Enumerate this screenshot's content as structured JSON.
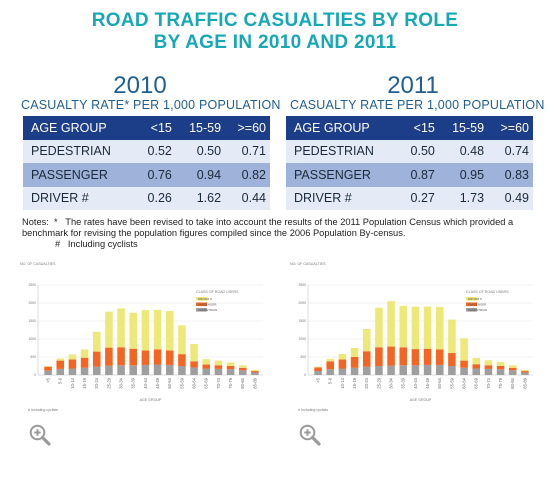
{
  "title_line1": "ROAD TRAFFIC CASUALTIES BY ROLE",
  "title_line2": "BY AGE IN 2010 AND 2011",
  "tables": [
    {
      "year": "2010",
      "subtitle": "CASUALTY RATE* PER 1,000 POPULATION",
      "headers": [
        "AGE GROUP",
        "<15",
        "15-59",
        ">=60"
      ],
      "rows": [
        [
          "PEDESTRIAN",
          "0.52",
          "0.50",
          "0.71"
        ],
        [
          "PASSENGER",
          "0.76",
          "0.94",
          "0.82"
        ],
        [
          "DRIVER #",
          "0.26",
          "1.62",
          "0.44"
        ]
      ]
    },
    {
      "year": "2011",
      "subtitle": "CASUALTY RATE PER 1,000 POPULATION",
      "headers": [
        "AGE GROUP",
        "<15",
        "15-59",
        ">=60"
      ],
      "rows": [
        [
          "PEDESTRIAN",
          "0.50",
          "0.48",
          "0.74"
        ],
        [
          "PASSENGER",
          "0.87",
          "0.95",
          "0.83"
        ],
        [
          "DRIVER #",
          "0.27",
          "1.73",
          "0.49"
        ]
      ]
    }
  ],
  "notes": {
    "label": "Notes:",
    "star": "*",
    "star_text": "The rates have been revised to take into account the results of the 2011 Population Census which provided a benchmark for revising the population figures compiled since the 2006 Population By-census.",
    "hash": "#",
    "hash_text": "Including cyclists"
  },
  "chart_data": [
    {
      "type": "bar",
      "stacked": true,
      "ylabel": "NO. OF CASUALTIES",
      "xlabel": "AGE GROUP",
      "legend_title": "CLASS OF ROAD USERS",
      "footnote": "# Including cyclists",
      "ylim": [
        0,
        2500
      ],
      "yticks": [
        0,
        500,
        1000,
        1500,
        2000,
        2500
      ],
      "categories": [
        "<5",
        "5-9",
        "10-14",
        "15-19",
        "20-24",
        "25-29",
        "30-34",
        "35-39",
        "40-44",
        "45-49",
        "50-54",
        "55-59",
        "60-64",
        "65-69",
        "70-74",
        "75-79",
        "80-84",
        "85-89"
      ],
      "series": [
        {
          "name": "PEDESTRIAN",
          "color": "#9e9e9e",
          "values": [
            120,
            170,
            180,
            200,
            230,
            260,
            270,
            270,
            280,
            290,
            280,
            250,
            210,
            180,
            170,
            160,
            130,
            70
          ]
        },
        {
          "name": "PASSENGER",
          "color": "#f26522",
          "values": [
            110,
            230,
            250,
            280,
            420,
            500,
            500,
            460,
            400,
            420,
            400,
            330,
            170,
            110,
            100,
            90,
            70,
            40
          ]
        },
        {
          "name": "DRIVER #",
          "color": "#ede878",
          "values": [
            20,
            60,
            140,
            230,
            550,
            1000,
            1080,
            1000,
            1120,
            1100,
            1100,
            800,
            480,
            150,
            130,
            100,
            70,
            30
          ]
        }
      ]
    },
    {
      "type": "bar",
      "stacked": true,
      "ylabel": "NO. OF CASUALTIES",
      "xlabel": "AGE GROUP",
      "legend_title": "CLASS OF ROAD USERS",
      "footnote": "# Including cyclists",
      "ylim": [
        0,
        2500
      ],
      "yticks": [
        0,
        500,
        1000,
        1500,
        2000,
        2500
      ],
      "categories": [
        "<5",
        "5-9",
        "10-14",
        "15-19",
        "20-24",
        "25-29",
        "30-34",
        "35-39",
        "40-44",
        "45-49",
        "50-54",
        "55-59",
        "60-64",
        "65-69",
        "70-74",
        "75-79",
        "80-84",
        "85-89"
      ],
      "series": [
        {
          "name": "PEDESTRIAN",
          "color": "#9e9e9e",
          "values": [
            110,
            160,
            180,
            200,
            230,
            250,
            260,
            270,
            270,
            280,
            280,
            250,
            200,
            180,
            170,
            160,
            130,
            70
          ]
        },
        {
          "name": "PASSENGER",
          "color": "#f26522",
          "values": [
            100,
            220,
            250,
            300,
            430,
            520,
            530,
            500,
            450,
            450,
            430,
            360,
            200,
            120,
            100,
            90,
            70,
            40
          ]
        },
        {
          "name": "DRIVER #",
          "color": "#ede878",
          "values": [
            20,
            70,
            150,
            250,
            620,
            1100,
            1260,
            1150,
            1180,
            1170,
            1180,
            930,
            620,
            170,
            140,
            110,
            70,
            30
          ]
        }
      ]
    }
  ]
}
